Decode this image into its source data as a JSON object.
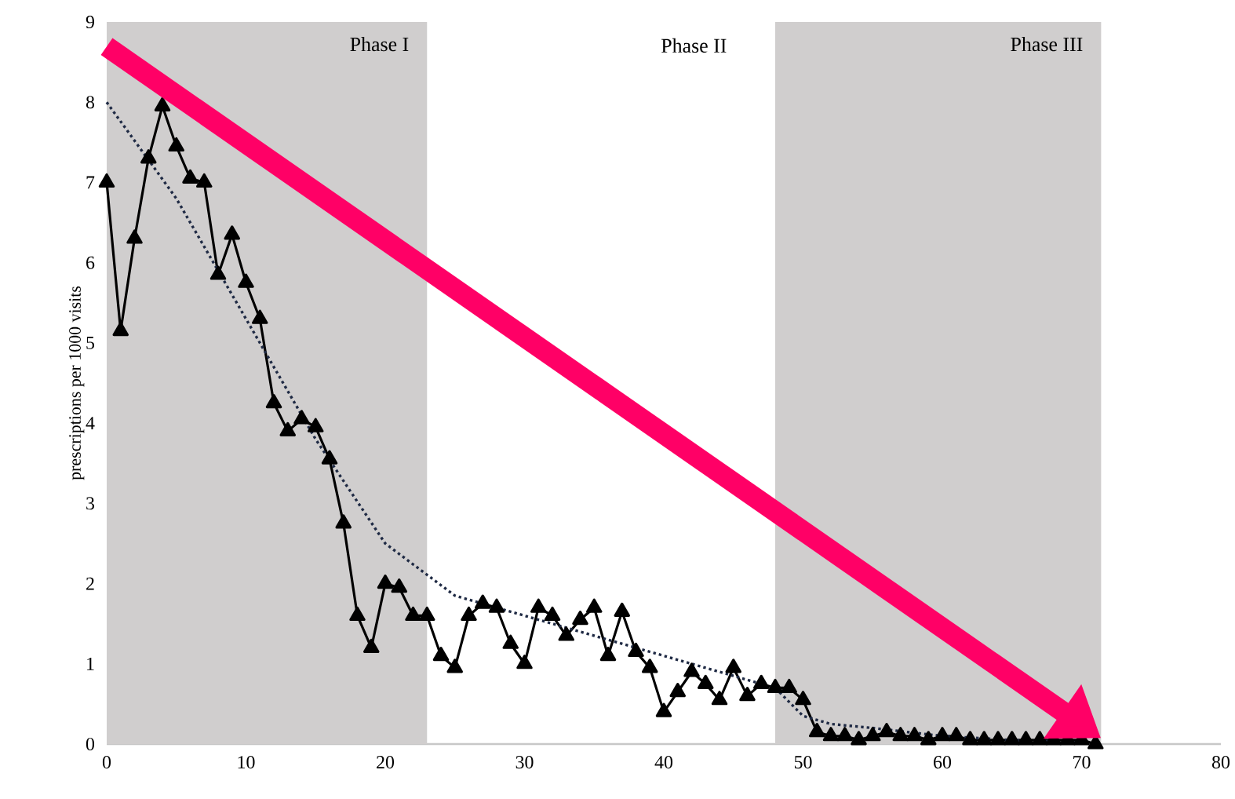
{
  "chart_data": {
    "type": "line",
    "ylabel": "prescriptions per 1000 visits",
    "xlim": [
      0,
      80
    ],
    "xticks": [
      0,
      10,
      20,
      30,
      40,
      50,
      60,
      70,
      80
    ],
    "ylim": [
      0,
      9
    ],
    "yticks": [
      0,
      1,
      2,
      3,
      4,
      5,
      6,
      7,
      8,
      9
    ],
    "series": [
      {
        "color": "#000000",
        "marker": "triangle",
        "line_style": "solid",
        "x": [
          0,
          1,
          2,
          3,
          4,
          5,
          6,
          7,
          8,
          9,
          10,
          11,
          12,
          13,
          14,
          15,
          16,
          17,
          18,
          19,
          20,
          21,
          22,
          23,
          24,
          25,
          26,
          27,
          28,
          29,
          30,
          31,
          32,
          33,
          34,
          35,
          36,
          37,
          38,
          39,
          40,
          41,
          42,
          43,
          44,
          45,
          46,
          47,
          48,
          49,
          50,
          51,
          52,
          53,
          54,
          55,
          56,
          57,
          58,
          59,
          60,
          61,
          62,
          63,
          64,
          65,
          66,
          67,
          68,
          69,
          70,
          71
        ],
        "values": [
          7.0,
          5.15,
          6.3,
          7.3,
          7.95,
          7.45,
          7.05,
          7.0,
          5.85,
          6.35,
          5.75,
          5.3,
          4.25,
          3.9,
          4.05,
          3.95,
          3.55,
          2.75,
          1.6,
          1.2,
          2.0,
          1.95,
          1.6,
          1.6,
          1.1,
          0.95,
          1.6,
          1.75,
          1.7,
          1.25,
          1.0,
          1.7,
          1.6,
          1.35,
          1.55,
          1.7,
          1.1,
          1.65,
          1.15,
          0.95,
          0.4,
          0.65,
          0.9,
          0.75,
          0.55,
          0.95,
          0.6,
          0.75,
          0.7,
          0.7,
          0.55,
          0.15,
          0.1,
          0.1,
          0.05,
          0.1,
          0.15,
          0.1,
          0.1,
          0.05,
          0.1,
          0.1,
          0.05,
          0.05,
          0.05,
          0.05,
          0.05,
          0.05,
          0.05,
          0.05,
          0.05,
          0.0
        ]
      },
      {
        "type": "line",
        "color": "#1f2a44",
        "marker": "none",
        "line_style": "dotted",
        "x": [
          0,
          5,
          10,
          15,
          20,
          25,
          30,
          35,
          40,
          45,
          48,
          50,
          52,
          55,
          60,
          65,
          70
        ],
        "values": [
          8.0,
          6.8,
          5.3,
          3.8,
          2.5,
          1.85,
          1.6,
          1.35,
          1.1,
          0.85,
          0.7,
          0.35,
          0.25,
          0.2,
          0.1,
          0.05,
          0.02
        ]
      }
    ],
    "bands": [
      {
        "axis": "x",
        "from": 0,
        "to": 23,
        "label": "Phase I",
        "color": "#d0cece"
      },
      {
        "axis": "x",
        "from": 48,
        "to": 71.4,
        "label": "Phase III",
        "color": "#d0cece"
      }
    ],
    "annotations": [
      "Phase II"
    ]
  }
}
